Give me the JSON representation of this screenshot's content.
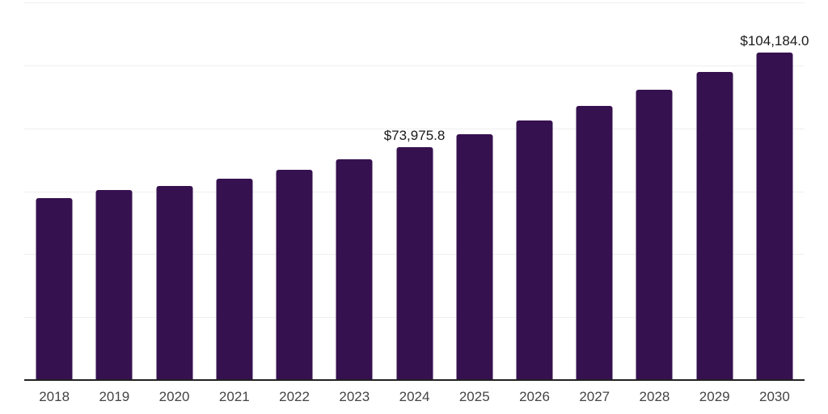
{
  "chart_data": {
    "type": "bar",
    "title": "",
    "xlabel": "",
    "ylabel": "",
    "categories": [
      "2018",
      "2019",
      "2020",
      "2021",
      "2022",
      "2023",
      "2024",
      "2025",
      "2026",
      "2027",
      "2028",
      "2029",
      "2030"
    ],
    "values": [
      57750,
      60300,
      61600,
      64100,
      66800,
      70250,
      73975.8,
      78100,
      82400,
      87200,
      92300,
      97800,
      104184.0
    ],
    "point_labels": {
      "2024": "$73,975.8",
      "2030": "$104,184.0"
    },
    "ylim": [
      0,
      120000
    ],
    "gridline_step": 20000,
    "grid": "horizontal-only",
    "legend_position": "none",
    "y_axis_tick_labels_visible": false,
    "colors": {
      "bar": "#36114f",
      "gridline": "#efefef",
      "axis_line": "#222222",
      "value_label": "#1a1a1a",
      "x_tick_label": "#444444"
    }
  }
}
